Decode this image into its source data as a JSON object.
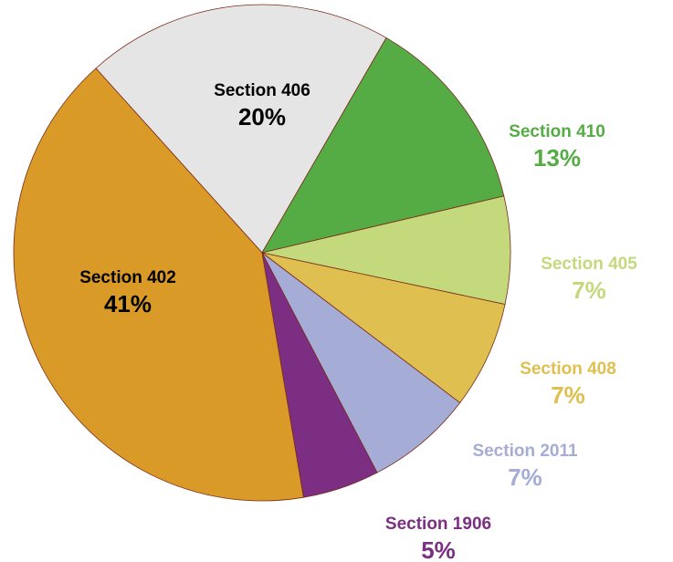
{
  "chart_data": {
    "type": "pie",
    "categories": [
      "Section 406",
      "Section 410",
      "Section 405",
      "Section 408",
      "Section 2011",
      "Section 1906",
      "Section 402"
    ],
    "values": [
      20,
      13,
      7,
      7,
      7,
      5,
      41
    ],
    "value_labels": [
      "20%",
      "13%",
      "7%",
      "7%",
      "7%",
      "5%",
      "41%"
    ],
    "colors": [
      "#e6e5e5",
      "#55ac45",
      "#c3d97c",
      "#dfbf4f",
      "#a5acd6",
      "#7b2e82",
      "#d99a27"
    ]
  }
}
